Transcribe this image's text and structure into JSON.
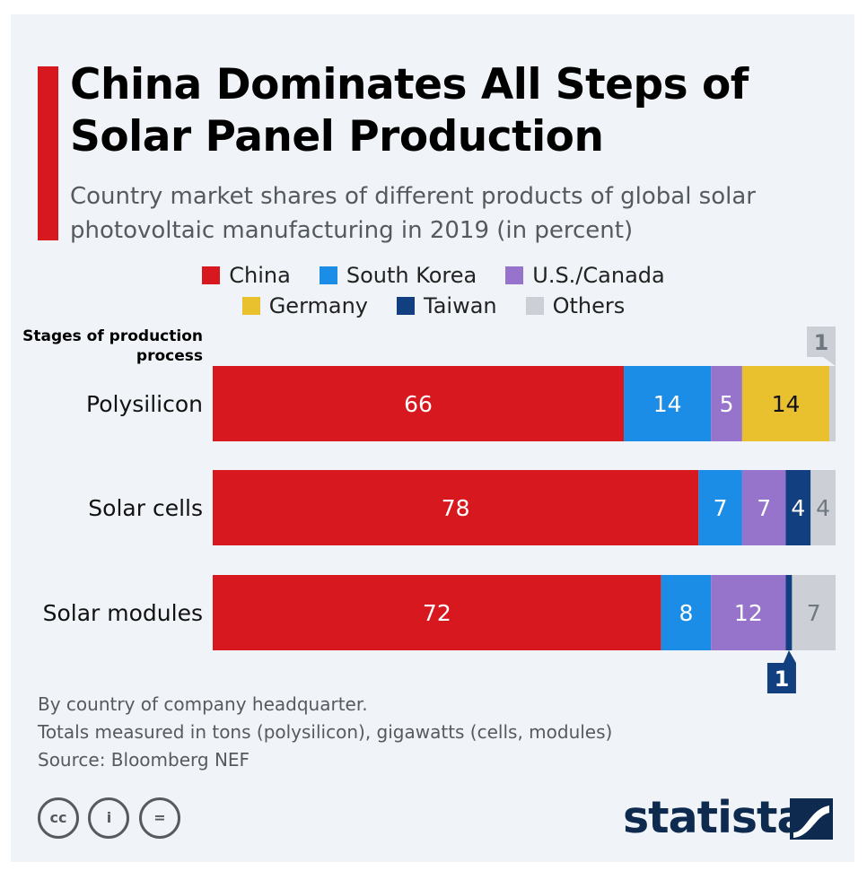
{
  "title": "China Dominates All Steps of Solar Panel Production",
  "subtitle": "Country market shares of different products of global solar photovoltaic manufacturing in 2019 (in percent)",
  "legend": [
    {
      "label": "China",
      "color": "#d7191f"
    },
    {
      "label": "South Korea",
      "color": "#1b8de6"
    },
    {
      "label": "U.S./Canada",
      "color": "#9674cc"
    },
    {
      "label": "Germany",
      "color": "#e9c12e"
    },
    {
      "label": "Taiwan",
      "color": "#123f7f"
    },
    {
      "label": "Others",
      "color": "#ccd0d6"
    }
  ],
  "stage_header": "Stages of production process",
  "chart_data": {
    "type": "bar",
    "orientation": "horizontal",
    "stacked": true,
    "categories": [
      "Polysilicon",
      "Solar cells",
      "Solar modules"
    ],
    "series": [
      {
        "name": "China",
        "values": [
          66,
          78,
          72
        ]
      },
      {
        "name": "South Korea",
        "values": [
          14,
          7,
          8
        ]
      },
      {
        "name": "U.S./Canada",
        "values": [
          5,
          7,
          12
        ]
      },
      {
        "name": "Germany",
        "values": [
          14,
          0,
          0
        ]
      },
      {
        "name": "Taiwan",
        "values": [
          0,
          4,
          1
        ]
      },
      {
        "name": "Others",
        "values": [
          1,
          4,
          7
        ]
      }
    ],
    "xlim": [
      0,
      100
    ]
  },
  "notes": [
    "By country of company headquarter.",
    "Totals measured in tons (polysilicon), gigawatts (cells, modules)",
    "Source: Bloomberg NEF"
  ],
  "license_icons": [
    "cc-icon",
    "attribution-icon",
    "no-derivatives-icon"
  ],
  "license_glyphs": [
    "cc",
    "i",
    "="
  ],
  "logo_text": "statista"
}
